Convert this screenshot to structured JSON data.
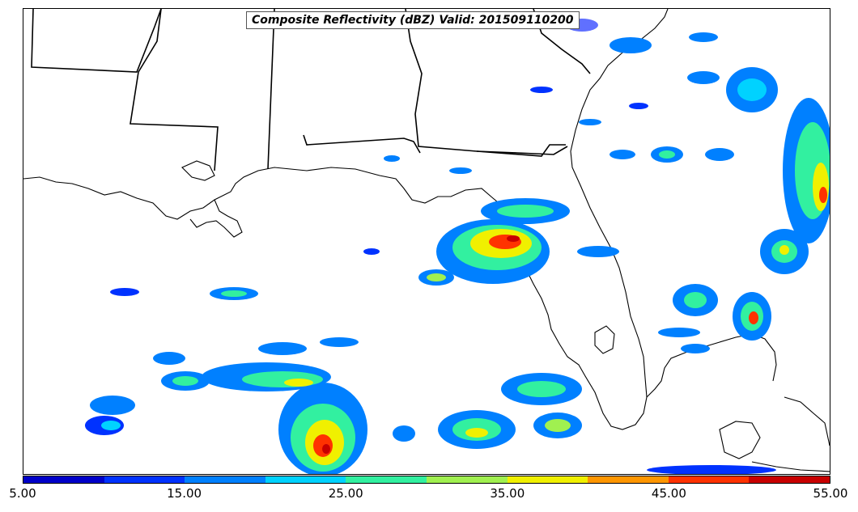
{
  "title": "Composite Reflectivity (dBZ) Valid: 201509110200",
  "colorbar": {
    "colors": [
      "#0000c8",
      "#0032ff",
      "#0080ff",
      "#00d2ff",
      "#32f0a0",
      "#a0f050",
      "#f0f000",
      "#ff9600",
      "#ff3200",
      "#c80000"
    ],
    "labels": [
      "5.00",
      "15.00",
      "25.00",
      "35.00",
      "45.00",
      "55.00"
    ],
    "min": 5,
    "max": 55
  }
}
